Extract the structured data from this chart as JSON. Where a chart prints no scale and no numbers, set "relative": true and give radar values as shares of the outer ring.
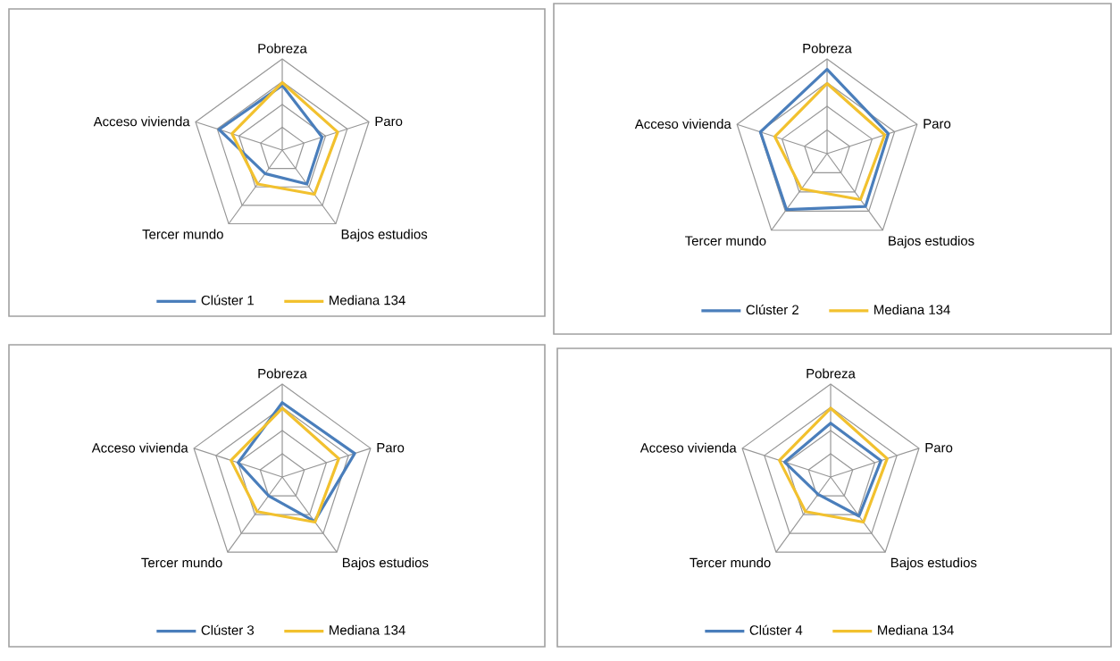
{
  "chart_data": [
    {
      "type": "radar",
      "categories": [
        "Pobreza",
        "Paro",
        "Bajos estudios",
        "Tercer mundo",
        "Acceso vivienda"
      ],
      "relative": true,
      "grid": true,
      "legend": "bottom",
      "series": [
        {
          "name": "Clúster 1",
          "color": "#4a7ebb",
          "values": [
            0.71,
            0.46,
            0.46,
            0.32,
            0.73
          ]
        },
        {
          "name": "Mediana 134",
          "color": "#f2c12e",
          "values": [
            0.74,
            0.64,
            0.6,
            0.46,
            0.58
          ]
        }
      ]
    },
    {
      "type": "radar",
      "categories": [
        "Pobreza",
        "Paro",
        "Bajos estudios",
        "Tercer mundo",
        "Acceso vivienda"
      ],
      "relative": true,
      "grid": true,
      "legend": "bottom",
      "series": [
        {
          "name": "Clúster 2",
          "color": "#4a7ebb",
          "values": [
            0.89,
            0.68,
            0.69,
            0.73,
            0.74
          ]
        },
        {
          "name": "Mediana 134",
          "color": "#f2c12e",
          "values": [
            0.74,
            0.64,
            0.6,
            0.46,
            0.58
          ]
        }
      ]
    },
    {
      "type": "radar",
      "categories": [
        "Pobreza",
        "Paro",
        "Bajos estudios",
        "Tercer mundo",
        "Acceso vivienda"
      ],
      "relative": true,
      "grid": true,
      "legend": "bottom",
      "series": [
        {
          "name": "Clúster 3",
          "color": "#4a7ebb",
          "values": [
            0.8,
            0.82,
            0.59,
            0.25,
            0.5
          ]
        },
        {
          "name": "Mediana 134",
          "color": "#f2c12e",
          "values": [
            0.74,
            0.64,
            0.6,
            0.46,
            0.58
          ]
        }
      ]
    },
    {
      "type": "radar",
      "categories": [
        "Pobreza",
        "Paro",
        "Bajos estudios",
        "Tercer mundo",
        "Acceso vivienda"
      ],
      "relative": true,
      "grid": true,
      "legend": "bottom",
      "series": [
        {
          "name": "Clúster 4",
          "color": "#4a7ebb",
          "values": [
            0.58,
            0.57,
            0.52,
            0.23,
            0.52
          ]
        },
        {
          "name": "Mediana 134",
          "color": "#f2c12e",
          "values": [
            0.74,
            0.64,
            0.6,
            0.46,
            0.58
          ]
        }
      ]
    }
  ]
}
